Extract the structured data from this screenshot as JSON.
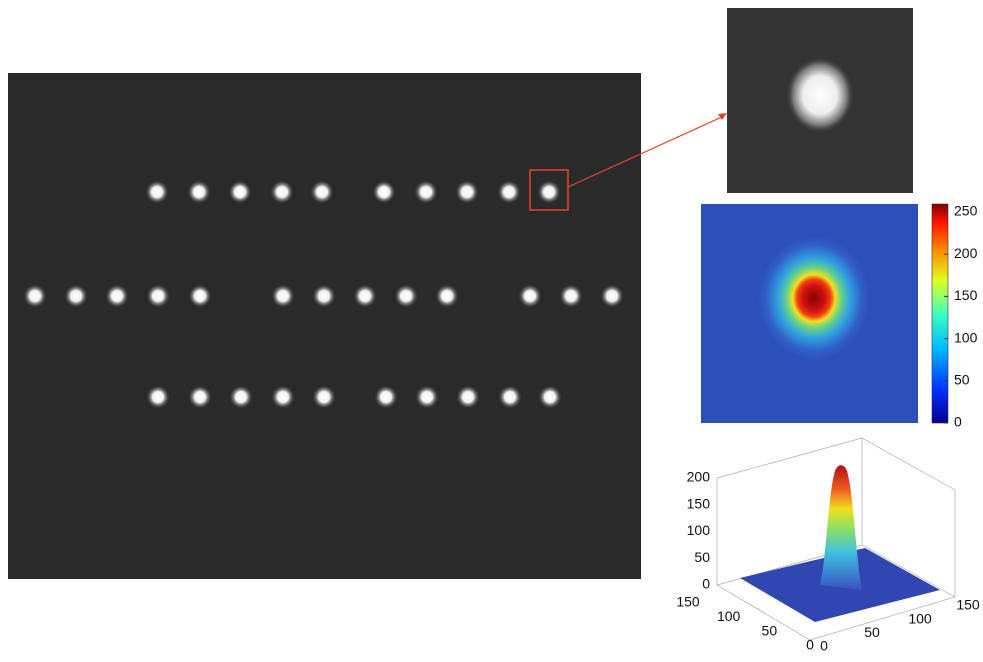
{
  "colorbar": {
    "ticks": [
      0,
      50,
      100,
      150,
      200,
      250
    ]
  },
  "surface": {
    "z_ticks": [
      0,
      50,
      100,
      150,
      200
    ],
    "y_ticks": [
      0,
      50,
      100,
      150
    ],
    "x_ticks": [
      0,
      50,
      100,
      150
    ]
  }
}
